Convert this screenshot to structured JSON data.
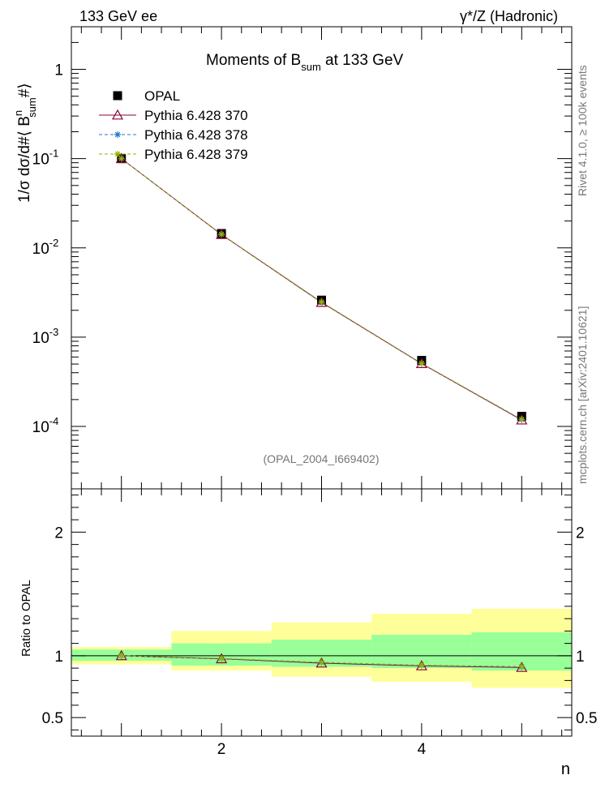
{
  "header": {
    "left": "133 GeV ee",
    "right": "γ*/Z (Hadronic)"
  },
  "side_labels": {
    "rivet": "Rivet 4.1.0, ≥ 100k events",
    "mcplots": "mcplots.cern.ch [arXiv:2401.10621]"
  },
  "chart_data": [
    {
      "type": "scatter",
      "title_main": "Moments of B",
      "title_sub": "sum",
      "title_rest": " at 133 GeV",
      "ylabel": "1/σ  dσ/d#⟨ B^n_sum #⟩",
      "ylabel_pre": "1/σ  dσ/d#⟨ B",
      "ylabel_sup": "n",
      "ylabel_sub": "sum",
      "ylabel_post": "#⟩",
      "yscale": "log",
      "ylim": [
        2e-05,
        3.0
      ],
      "xlim": [
        0.5,
        5.5
      ],
      "y_ticks": [
        {
          "base": "10",
          "exp": "-4",
          "value": 0.0001
        },
        {
          "base": "10",
          "exp": "-3",
          "value": 0.001
        },
        {
          "base": "10",
          "exp": "-2",
          "value": 0.01
        },
        {
          "base": "10",
          "exp": "-1",
          "value": 0.1
        },
        {
          "base": "1",
          "exp": "",
          "value": 1
        }
      ],
      "watermark": "(OPAL_2004_I669402)",
      "legend_position": "top-left",
      "x": [
        1,
        2,
        3,
        4,
        5
      ],
      "series": [
        {
          "name": "OPAL",
          "marker": "square",
          "color": "#000000",
          "values": [
            0.1,
            0.0145,
            0.0026,
            0.00055,
            0.00013
          ]
        },
        {
          "name": "Pythia 6.428 370",
          "marker": "triangle",
          "line": "solid",
          "color": "#8b0038",
          "values": [
            0.1,
            0.0141,
            0.00245,
            0.000505,
            0.000118
          ]
        },
        {
          "name": "Pythia 6.428 378",
          "marker": "star",
          "line": "dashed",
          "color": "#1f77d4",
          "values": [
            0.1,
            0.0142,
            0.00247,
            0.000508,
            0.000119
          ]
        },
        {
          "name": "Pythia 6.428 379",
          "marker": "star",
          "line": "dashed",
          "color": "#8db600",
          "values": [
            0.1,
            0.0142,
            0.00248,
            0.00051,
            0.00012
          ]
        }
      ]
    },
    {
      "type": "line",
      "ylabel": "Ratio to OPAL",
      "xlabel": "n",
      "ylim": [
        0.35,
        2.35
      ],
      "xlim": [
        0.5,
        5.5
      ],
      "y_ticks": [
        "0.5",
        "1",
        "2"
      ],
      "y_tick_values": [
        0.5,
        1,
        2
      ],
      "x_ticks": [
        "2",
        "4"
      ],
      "x_tick_values": [
        2,
        4
      ],
      "bands": [
        {
          "x0": 0.5,
          "x1": 1.5,
          "green": [
            0.96,
            1.05
          ],
          "yellow": [
            0.93,
            1.07
          ]
        },
        {
          "x0": 1.5,
          "x1": 2.5,
          "green": [
            0.92,
            1.1
          ],
          "yellow": [
            0.88,
            1.2
          ]
        },
        {
          "x0": 2.5,
          "x1": 3.5,
          "green": [
            0.91,
            1.13
          ],
          "yellow": [
            0.83,
            1.27
          ]
        },
        {
          "x0": 3.5,
          "x1": 4.5,
          "green": [
            0.9,
            1.17
          ],
          "yellow": [
            0.79,
            1.34
          ]
        },
        {
          "x0": 4.5,
          "x1": 5.5,
          "green": [
            0.88,
            1.19
          ],
          "yellow": [
            0.74,
            1.38
          ]
        }
      ],
      "x": [
        1,
        2,
        3,
        4,
        5
      ],
      "series": [
        {
          "name": "Pythia 6.428 370",
          "values": [
            1.0,
            0.975,
            0.94,
            0.918,
            0.905
          ]
        },
        {
          "name": "Pythia 6.428 378",
          "values": [
            1.0,
            0.978,
            0.945,
            0.922,
            0.91
          ]
        },
        {
          "name": "Pythia 6.428 379",
          "values": [
            1.0,
            0.978,
            0.947,
            0.924,
            0.913
          ]
        }
      ]
    }
  ],
  "colors": {
    "green_band": "#99ff99",
    "yellow_band": "#ffff99",
    "opal": "#000000",
    "p370": "#8b0038",
    "p378": "#1f77d4",
    "p379": "#8db600"
  }
}
